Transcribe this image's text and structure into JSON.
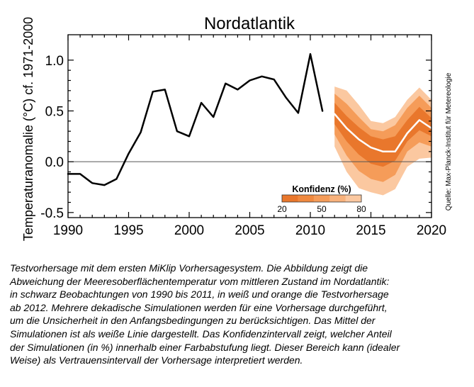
{
  "chart_data": {
    "type": "line",
    "title": "Nordatlantik",
    "xlabel": "",
    "ylabel": "Temperaturanomalie (°C) cf. 1971-2000",
    "xlim": [
      1990,
      2020
    ],
    "ylim": [
      -0.55,
      1.25
    ],
    "xticks": [
      1990,
      1995,
      2000,
      2005,
      2010,
      2015,
      2020
    ],
    "yticks": [
      {
        "value": 1.0,
        "label": "1.0"
      },
      {
        "value": 0.5,
        "label": "0.5"
      },
      {
        "value": 0.0,
        "label": "0.0"
      },
      {
        "value": -0.5,
        "label": "-0.5"
      }
    ],
    "zero_line": true,
    "grid": false,
    "series": [
      {
        "role": "observations",
        "color": "#000000",
        "points": [
          [
            1990,
            -0.12
          ],
          [
            1991,
            -0.12
          ],
          [
            1992,
            -0.21
          ],
          [
            1993,
            -0.23
          ],
          [
            1994,
            -0.17
          ],
          [
            1995,
            0.08
          ],
          [
            1996,
            0.29
          ],
          [
            1997,
            0.69
          ],
          [
            1998,
            0.71
          ],
          [
            1999,
            0.3
          ],
          [
            2000,
            0.25
          ],
          [
            2001,
            0.58
          ],
          [
            2002,
            0.44
          ],
          [
            2003,
            0.77
          ],
          [
            2004,
            0.71
          ],
          [
            2005,
            0.8
          ],
          [
            2006,
            0.84
          ],
          [
            2007,
            0.81
          ],
          [
            2008,
            0.63
          ],
          [
            2009,
            0.48
          ],
          [
            2010,
            1.06
          ],
          [
            2011,
            0.5
          ]
        ]
      },
      {
        "role": "forecast-mean",
        "color": "#ffffff",
        "points": [
          [
            2012,
            0.47
          ],
          [
            2013,
            0.33
          ],
          [
            2014,
            0.22
          ],
          [
            2015,
            0.14
          ],
          [
            2016,
            0.1
          ],
          [
            2017,
            0.1
          ],
          [
            2018,
            0.28
          ],
          [
            2019,
            0.41
          ],
          [
            2020,
            0.33
          ]
        ]
      }
    ],
    "confidence_bands": {
      "x": [
        2012,
        2013,
        2014,
        2015,
        2016,
        2017,
        2018,
        2019,
        2020
      ],
      "bands": [
        {
          "level": 80,
          "color": "#fbc8a0",
          "lower": [
            0.15,
            -0.1,
            -0.26,
            -0.3,
            -0.33,
            -0.27,
            -0.05,
            0.03,
            0.04
          ],
          "upper": [
            0.74,
            0.7,
            0.56,
            0.4,
            0.38,
            0.44,
            0.61,
            0.73,
            0.61
          ]
        },
        {
          "level": 50,
          "color": "#f59c59",
          "lower": [
            0.27,
            0.06,
            -0.09,
            -0.17,
            -0.2,
            -0.13,
            0.1,
            0.19,
            0.15
          ],
          "upper": [
            0.67,
            0.57,
            0.44,
            0.32,
            0.3,
            0.36,
            0.53,
            0.65,
            0.53
          ]
        },
        {
          "level": 20,
          "color": "#e9772c",
          "lower": [
            0.37,
            0.2,
            0.07,
            -0.02,
            -0.05,
            0.01,
            0.2,
            0.31,
            0.25
          ],
          "upper": [
            0.58,
            0.45,
            0.34,
            0.25,
            0.22,
            0.25,
            0.41,
            0.54,
            0.43
          ]
        }
      ]
    },
    "legend": {
      "title": "Konfidenz (%)",
      "placement": "bottom-right",
      "tick_labels": [
        "20",
        "50",
        "80"
      ],
      "colors": [
        "#e9772c",
        "#f0893f",
        "#f59c59",
        "#f8b27c",
        "#fbc8a0"
      ]
    },
    "source": "Quelle: Max-Planck-Institut für Metereologie"
  },
  "caption": {
    "lines": [
      "Testvorhersage mit dem ersten MiKlip Vorhersagesystem. Die Abbildung zeigt die",
      "Abweichung der Meeresoberflächentemperatur vom mittleren Zustand im Nordatlantik:",
      "in schwarz Beobachtungen von 1990 bis 2011, in weiß und orange die Testvorhersage",
      "ab 2012. Mehrere dekadische Simulationen werden für eine Vorhersage durchgeführt,",
      "um die Unsicherheit in den Anfangsbedingungen zu berücksichtigen. Das Mittel der",
      "Simulationen ist als weiße Linie dargestellt. Das Konfidenzintervall zeigt, welcher Anteil",
      "der Simulationen (in %) innerhalb einer Farbabstufung liegt. Dieser Bereich kann (idealer",
      "Weise) als Vertrauensintervall der Vorhersage interpretiert werden."
    ]
  }
}
